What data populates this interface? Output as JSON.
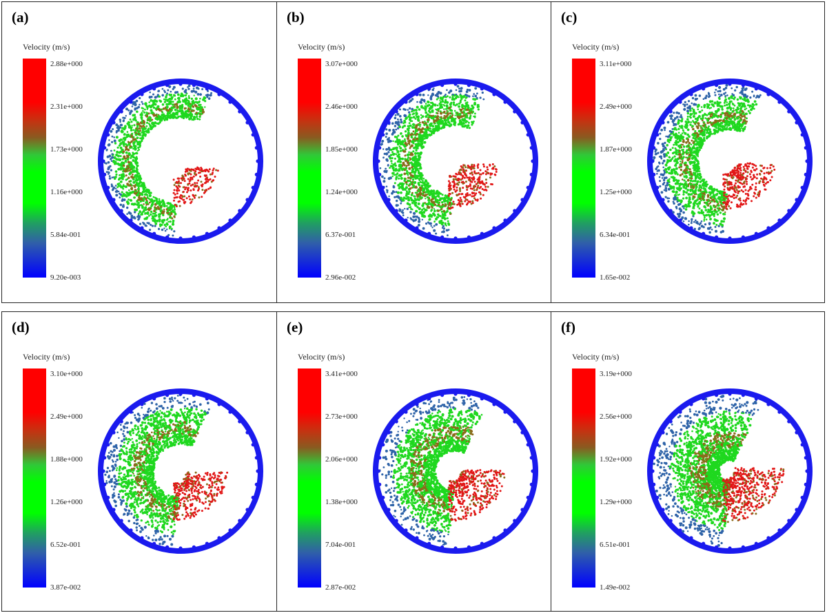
{
  "panels": [
    {
      "label": "(a)",
      "title": "Velocity (m/s)",
      "ticks": [
        "2.88e+000",
        "2.31e+000",
        "1.73e+000",
        "1.16e+000",
        "5.84e-001",
        "9.20e-003"
      ],
      "fill": 0.3,
      "red": 0.2
    },
    {
      "label": "(b)",
      "title": "Velocity (m/s)",
      "ticks": [
        "3.07e+000",
        "2.46e+000",
        "1.85e+000",
        "1.24e+000",
        "6.37e-001",
        "2.96e-002"
      ],
      "fill": 0.42,
      "red": 0.35
    },
    {
      "label": "(c)",
      "title": "Velocity (m/s)",
      "ticks": [
        "3.11e+000",
        "2.49e+000",
        "1.87e+000",
        "1.25e+000",
        "6.34e-001",
        "1.65e-002"
      ],
      "fill": 0.48,
      "red": 0.4
    },
    {
      "label": "(d)",
      "title": "Velocity (m/s)",
      "ticks": [
        "3.10e+000",
        "2.49e+000",
        "1.88e+000",
        "1.26e+000",
        "6.52e-001",
        "3.87e-002"
      ],
      "fill": 0.55,
      "red": 0.45
    },
    {
      "label": "(e)",
      "title": "Velocity (m/s)",
      "ticks": [
        "3.41e+000",
        "2.73e+000",
        "2.06e+000",
        "1.38e+000",
        "7.04e-001",
        "2.87e-002"
      ],
      "fill": 0.65,
      "red": 0.55
    },
    {
      "label": "(f)",
      "title": "Velocity (m/s)",
      "ticks": [
        "3.19e+000",
        "2.56e+000",
        "1.92e+000",
        "1.29e+000",
        "6.51e-001",
        "1.49e-002"
      ],
      "fill": 0.8,
      "red": 0.65
    }
  ],
  "colors": {
    "drum": "#1a1aee",
    "fast": "#e21616",
    "medium": "#8a6a1a",
    "slow": "#1fd81f",
    "bed": "#2e63a8"
  }
}
